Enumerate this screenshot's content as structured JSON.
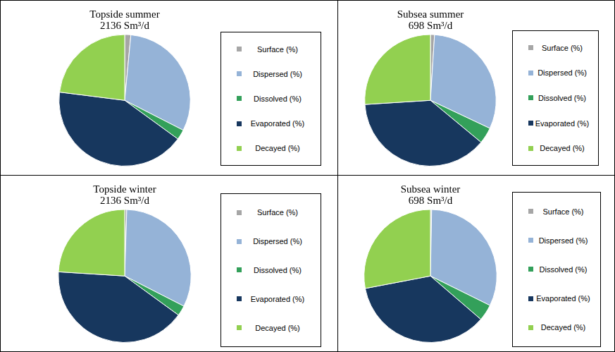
{
  "chart_data": [
    {
      "type": "pie",
      "title": "Topside summer",
      "subtitle": "2136 Sm³/d",
      "categories": [
        "Surface (%)",
        "Dispersed (%)",
        "Dissolved (%)",
        "Evaporated (%)",
        "Decayed (%)"
      ],
      "values": [
        1.5,
        31,
        2.5,
        42,
        23
      ],
      "colors": [
        "#a6a6a6",
        "#95b3d7",
        "#33a05a",
        "#17375e",
        "#92d050"
      ],
      "legend": "right"
    },
    {
      "type": "pie",
      "title": "Subsea summer",
      "subtitle": "698 Sm³/d",
      "categories": [
        "Surface (%)",
        "Dispersed (%)",
        "Dissolved (%)",
        "Evaporated (%)",
        "Decayed (%)"
      ],
      "values": [
        1,
        31,
        4,
        38,
        26
      ],
      "colors": [
        "#a6a6a6",
        "#95b3d7",
        "#33a05a",
        "#17375e",
        "#92d050"
      ],
      "legend": "right"
    },
    {
      "type": "pie",
      "title": "Topside winter",
      "subtitle": "2136 Sm³/d",
      "categories": [
        "Surface (%)",
        "Dispersed (%)",
        "Dissolved (%)",
        "Evaporated (%)",
        "Decayed (%)"
      ],
      "values": [
        0.5,
        32,
        2.5,
        41,
        24
      ],
      "colors": [
        "#a6a6a6",
        "#95b3d7",
        "#33a05a",
        "#17375e",
        "#92d050"
      ],
      "legend": "right"
    },
    {
      "type": "pie",
      "title": "Subsea winter",
      "subtitle": "698 Sm³/d",
      "categories": [
        "Surface (%)",
        "Dispersed (%)",
        "Dissolved (%)",
        "Evaporated (%)",
        "Decayed (%)"
      ],
      "values": [
        0.3,
        32,
        4,
        35.7,
        28
      ],
      "colors": [
        "#a6a6a6",
        "#95b3d7",
        "#33a05a",
        "#17375e",
        "#92d050"
      ],
      "legend": "right"
    }
  ]
}
